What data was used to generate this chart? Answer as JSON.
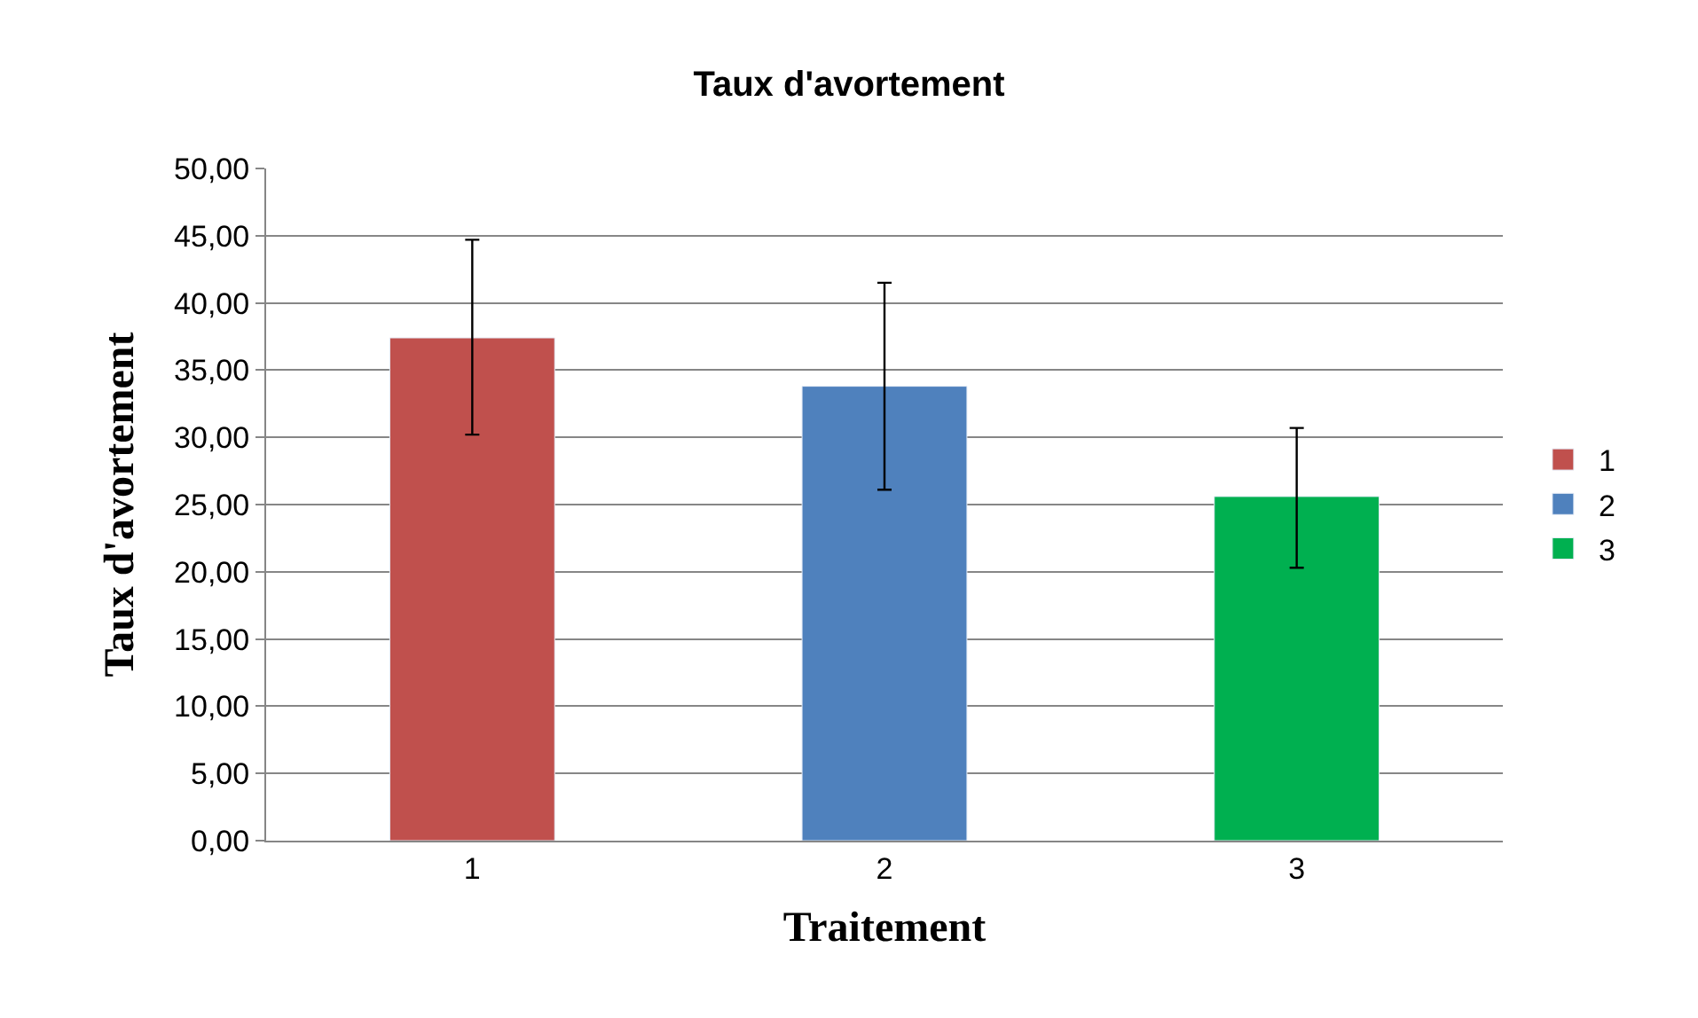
{
  "chart_data": {
    "type": "bar",
    "title": "Taux d'avortement",
    "xlabel": "Traitement",
    "ylabel": "Taux d'avortement",
    "categories": [
      "1",
      "2",
      "3"
    ],
    "series": [
      {
        "name": "1",
        "color": "#c0504d",
        "values": [
          37.4,
          null,
          null
        ],
        "errors": [
          [
            30.2,
            44.7
          ],
          null,
          null
        ]
      },
      {
        "name": "2",
        "color": "#4f81bd",
        "values": [
          null,
          33.8,
          null
        ],
        "errors": [
          null,
          [
            26.1,
            41.5
          ],
          null
        ]
      },
      {
        "name": "3",
        "color": "#00b050",
        "values": [
          null,
          null,
          25.6
        ],
        "errors": [
          null,
          null,
          [
            20.3,
            30.7
          ]
        ]
      }
    ],
    "ylim": [
      0,
      50
    ],
    "yticks": [
      {
        "value": 0,
        "label": "0,00"
      },
      {
        "value": 5,
        "label": "5,00"
      },
      {
        "value": 10,
        "label": "10,00"
      },
      {
        "value": 15,
        "label": "15,00"
      },
      {
        "value": 20,
        "label": "20,00"
      },
      {
        "value": 25,
        "label": "25,00"
      },
      {
        "value": 30,
        "label": "30,00"
      },
      {
        "value": 35,
        "label": "35,00"
      },
      {
        "value": 40,
        "label": "40,00"
      },
      {
        "value": 45,
        "label": "45,00"
      },
      {
        "value": 50,
        "label": "50,00"
      }
    ],
    "grid": "y",
    "legend": "right"
  }
}
